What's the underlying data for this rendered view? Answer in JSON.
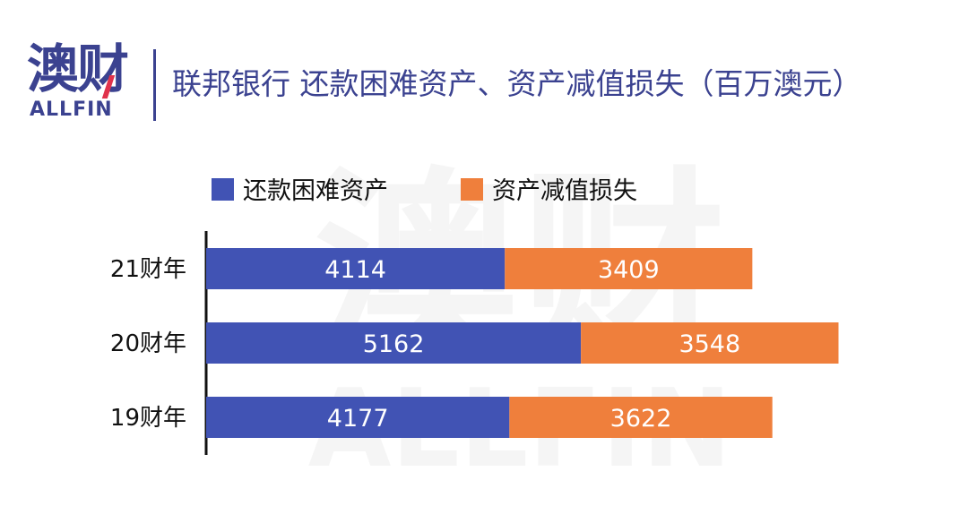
{
  "header": {
    "logo_cn": "澳财",
    "logo_en": "ALLFIN",
    "title": "联邦银行 还款困难资产、资产减值损失（百万澳元）"
  },
  "watermark": {
    "cn": "澳财",
    "en": "ALLFIN"
  },
  "chart_data": {
    "type": "bar",
    "orientation": "horizontal",
    "stacked": true,
    "title": "联邦银行 还款困难资产、资产减值损失（百万澳元）",
    "categories": [
      "21财年",
      "20财年",
      "19财年"
    ],
    "series": [
      {
        "name": "还款困难资产",
        "values": [
          4114,
          5162,
          4177
        ],
        "color": "#4153b4"
      },
      {
        "name": "资产减值损失",
        "values": [
          3409,
          3548,
          3622
        ],
        "color": "#ef7f3c"
      }
    ],
    "xlim": [
      0,
      10000
    ],
    "legend_position": "top-left",
    "grid": false,
    "data_labels": true
  },
  "colors": {
    "brand": "#3b4290",
    "accent": "#e0324b",
    "axis": "#111111"
  }
}
